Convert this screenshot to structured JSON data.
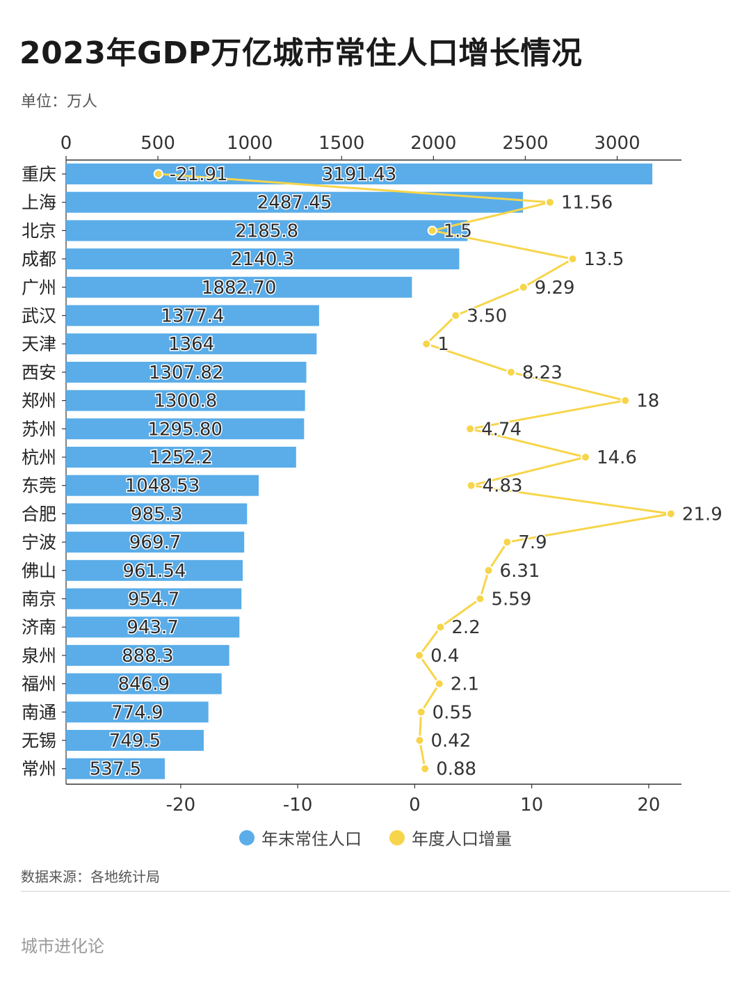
{
  "header": {
    "title": "2023年GDP万亿城市常住人口增长情况",
    "unit": "单位：万人"
  },
  "legend": {
    "pop_label": "年末常住人口",
    "inc_label": "年度人口增量"
  },
  "footer": {
    "source": "数据来源：各地统计局",
    "brand": "城市进化论"
  },
  "colors": {
    "bar": "#5aade8",
    "line": "#f7d54a",
    "axis": "#333333"
  },
  "chart_data": {
    "type": "bar",
    "categories": [
      "重庆",
      "上海",
      "北京",
      "成都",
      "广州",
      "武汉",
      "天津",
      "西安",
      "郑州",
      "苏州",
      "杭州",
      "东莞",
      "合肥",
      "宁波",
      "佛山",
      "南京",
      "济南",
      "泉州",
      "福州",
      "南通",
      "无锡",
      "常州"
    ],
    "series": [
      {
        "name": "年末常住人口",
        "type": "bar",
        "axis": "top",
        "values": [
          3191.43,
          2487.45,
          2185.8,
          2140.3,
          1882.7,
          1377.4,
          1364,
          1307.82,
          1300.8,
          1295.8,
          1252.2,
          1048.53,
          985.3,
          969.7,
          961.54,
          954.7,
          943.7,
          888.3,
          846.9,
          774.9,
          749.5,
          537.5
        ],
        "labels": [
          "3191.43",
          "2487.45",
          "2185.8",
          "2140.3",
          "1882.70",
          "1377.4",
          "1364",
          "1307.82",
          "1300.8",
          "1295.80",
          "1252.2",
          "1048.53",
          "985.3",
          "969.7",
          "961.54",
          "954.7",
          "943.7",
          "888.3",
          "846.9",
          "774.9",
          "749.5",
          "537.5"
        ]
      },
      {
        "name": "年度人口增量",
        "type": "line",
        "axis": "bottom",
        "values": [
          -21.91,
          11.56,
          1.5,
          13.5,
          9.29,
          3.5,
          1,
          8.23,
          18,
          4.74,
          14.6,
          4.83,
          21.9,
          7.9,
          6.31,
          5.59,
          2.2,
          0.4,
          2.1,
          0.55,
          0.42,
          0.88
        ],
        "labels": [
          "-21.91",
          "11.56",
          "1.5",
          "13.5",
          "9.29",
          "3.50",
          "1",
          "8.23",
          "18",
          "4.74",
          "14.6",
          "4.83",
          "21.9",
          "7.9",
          "6.31",
          "5.59",
          "2.2",
          "0.4",
          "2.1",
          "0.55",
          "0.42",
          "0.88"
        ]
      }
    ],
    "top_axis": {
      "range": [
        0,
        3350
      ],
      "ticks": [
        "0",
        "500",
        "1000",
        "1500",
        "2000",
        "2500",
        "3000"
      ]
    },
    "bottom_axis": {
      "range": [
        -29.8,
        22.8
      ],
      "ticks": [
        "-20",
        "-10",
        "0",
        "10",
        "20"
      ]
    }
  }
}
